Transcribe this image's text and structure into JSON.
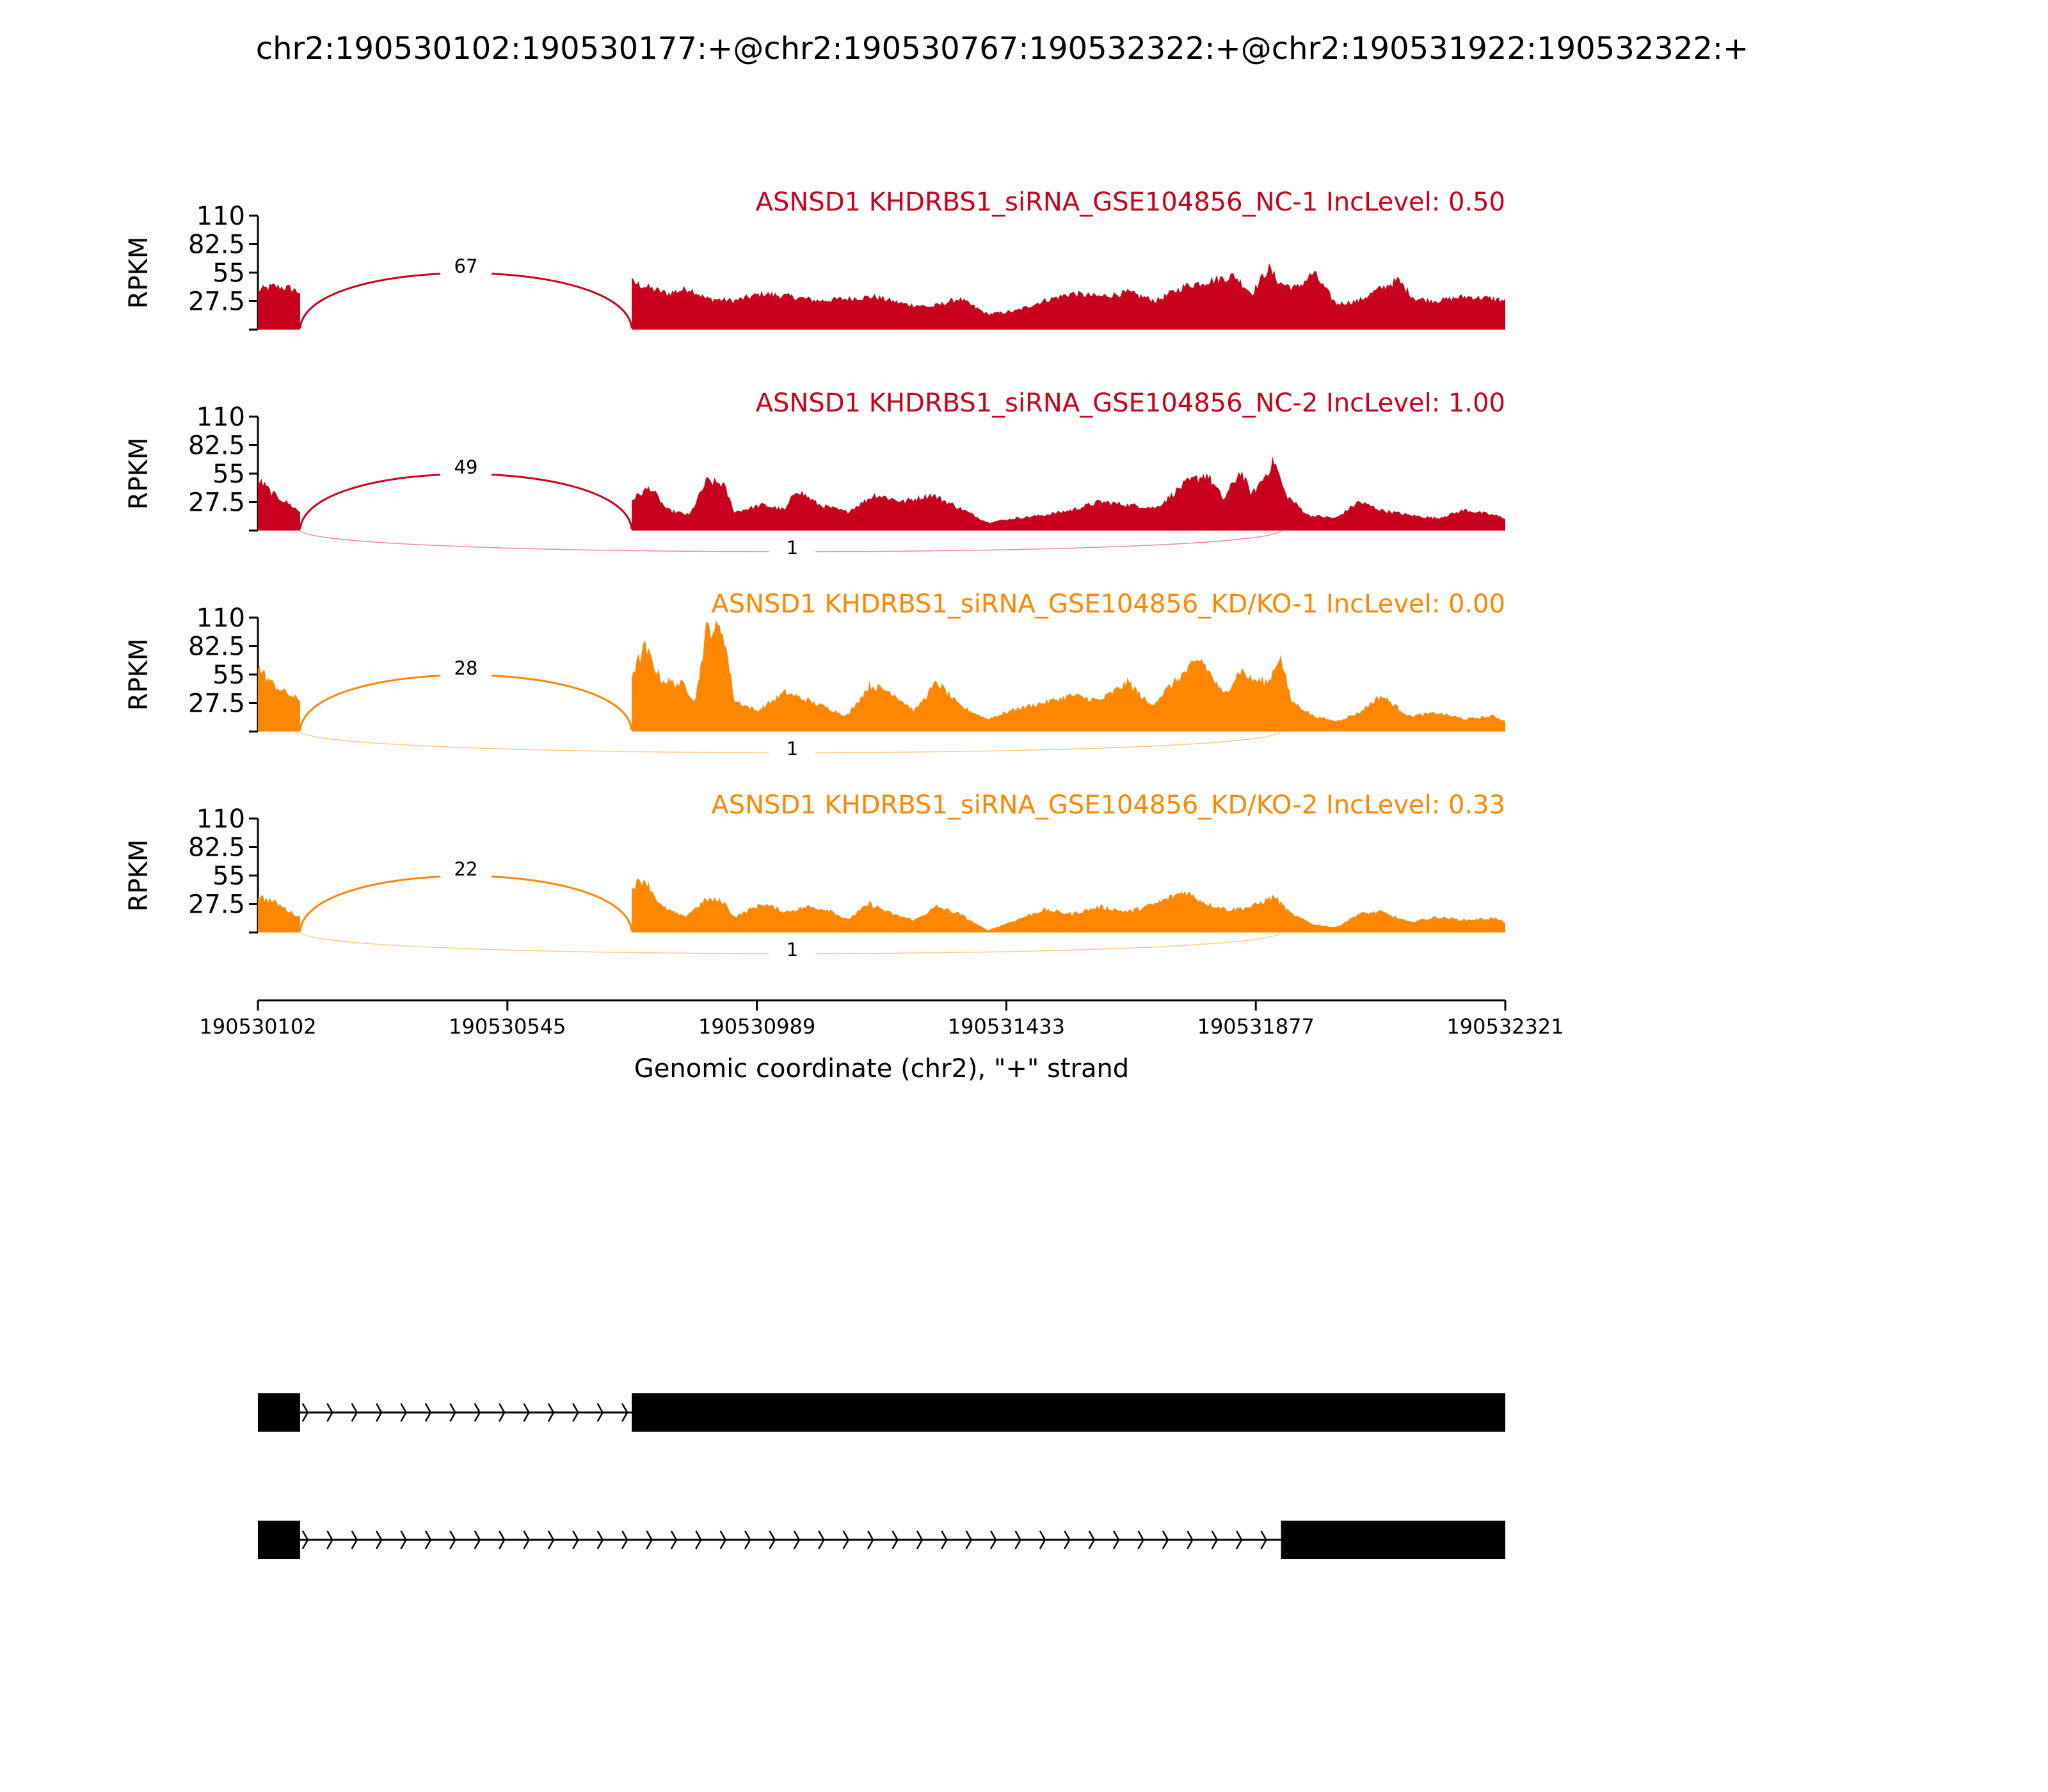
{
  "chart_data": {
    "type": "area",
    "title": "chr2:190530102:190530177:+@chr2:190530767:190532322:+@chr2:190531922:190532322:+",
    "ylabel": "RPKM",
    "yticks": [
      "110",
      "82.5",
      "55",
      "27.5"
    ],
    "ylim": [
      0,
      110
    ],
    "xlim": [
      190530102,
      190532321
    ],
    "xticks": [
      "190530102",
      "190530545",
      "190530989",
      "190531433",
      "190531877",
      "190532321"
    ],
    "xlabel": "Genomic coordinate (chr2), \"+\" strand",
    "exons": [
      [
        190530102,
        190530177
      ],
      [
        190530767,
        190531922
      ],
      [
        190531922,
        190532321
      ]
    ],
    "samples": [
      {
        "name": "ASNSD1 KHDRBS1_siRNA_GSE104856_NC-1 IncLevel: 0.50",
        "color": "#c9001b",
        "junctions": [
          {
            "from": 190530177,
            "to": 190530767,
            "count": "67",
            "side": "top"
          }
        ],
        "coverage_profile": [
          [
            190530102,
            38
          ],
          [
            190530130,
            42
          ],
          [
            190530160,
            40
          ],
          [
            190530177,
            36
          ],
          [
            190530767,
            46
          ],
          [
            190530790,
            42
          ],
          [
            190530830,
            35
          ],
          [
            190530870,
            40
          ],
          [
            190530900,
            30
          ],
          [
            190530950,
            28
          ],
          [
            190531000,
            35
          ],
          [
            190531050,
            32
          ],
          [
            190531100,
            28
          ],
          [
            190531150,
            30
          ],
          [
            190531200,
            32
          ],
          [
            190531250,
            25
          ],
          [
            190531300,
            22
          ],
          [
            190531350,
            30
          ],
          [
            190531400,
            15
          ],
          [
            190531450,
            18
          ],
          [
            190531500,
            28
          ],
          [
            190531550,
            35
          ],
          [
            190531600,
            32
          ],
          [
            190531650,
            36
          ],
          [
            190531700,
            28
          ],
          [
            190531750,
            42
          ],
          [
            190531800,
            48
          ],
          [
            190531840,
            52
          ],
          [
            190531870,
            35
          ],
          [
            190531900,
            60
          ],
          [
            190531920,
            45
          ],
          [
            190531950,
            40
          ],
          [
            190531980,
            55
          ],
          [
            190532020,
            25
          ],
          [
            190532060,
            28
          ],
          [
            190532100,
            40
          ],
          [
            190532130,
            48
          ],
          [
            190532160,
            30
          ],
          [
            190532200,
            28
          ],
          [
            190532250,
            32
          ],
          [
            190532300,
            30
          ],
          [
            190532321,
            28
          ]
        ]
      },
      {
        "name": "ASNSD1 KHDRBS1_siRNA_GSE104856_NC-2 IncLevel: 1.00",
        "color": "#c9001b",
        "junctions": [
          {
            "from": 190530177,
            "to": 190530767,
            "count": "49",
            "side": "top"
          },
          {
            "from": 190530177,
            "to": 190531922,
            "count": "1",
            "side": "bottom"
          }
        ],
        "coverage_profile": [
          [
            190530102,
            50
          ],
          [
            190530130,
            35
          ],
          [
            190530160,
            25
          ],
          [
            190530177,
            18
          ],
          [
            190530767,
            30
          ],
          [
            190530800,
            42
          ],
          [
            190530830,
            20
          ],
          [
            190530870,
            15
          ],
          [
            190530900,
            48
          ],
          [
            190530930,
            45
          ],
          [
            190530950,
            18
          ],
          [
            190531000,
            25
          ],
          [
            190531040,
            20
          ],
          [
            190531060,
            40
          ],
          [
            190531100,
            25
          ],
          [
            190531150,
            18
          ],
          [
            190531200,
            35
          ],
          [
            190531250,
            28
          ],
          [
            190531300,
            35
          ],
          [
            190531350,
            22
          ],
          [
            190531400,
            8
          ],
          [
            190531450,
            12
          ],
          [
            190531500,
            15
          ],
          [
            190531550,
            20
          ],
          [
            190531600,
            28
          ],
          [
            190531650,
            25
          ],
          [
            190531700,
            22
          ],
          [
            190531750,
            45
          ],
          [
            190531790,
            55
          ],
          [
            190531820,
            30
          ],
          [
            190531850,
            58
          ],
          [
            190531870,
            35
          ],
          [
            190531890,
            50
          ],
          [
            190531910,
            68
          ],
          [
            190531930,
            35
          ],
          [
            190531970,
            15
          ],
          [
            190532020,
            12
          ],
          [
            190532060,
            28
          ],
          [
            190532100,
            20
          ],
          [
            190532150,
            15
          ],
          [
            190532200,
            12
          ],
          [
            190532250,
            20
          ],
          [
            190532300,
            15
          ],
          [
            190532321,
            12
          ]
        ]
      },
      {
        "name": "ASNSD1 KHDRBS1_siRNA_GSE104856_KD/KO-1 IncLevel: 0.00",
        "color": "#ff8700",
        "junctions": [
          {
            "from": 190530177,
            "to": 190530767,
            "count": "28",
            "side": "top"
          },
          {
            "from": 190530177,
            "to": 190531922,
            "count": "1",
            "side": "bottom"
          }
        ],
        "coverage_profile": [
          [
            190530102,
            62
          ],
          [
            190530130,
            45
          ],
          [
            190530160,
            35
          ],
          [
            190530177,
            30
          ],
          [
            190530767,
            55
          ],
          [
            190530790,
            82
          ],
          [
            190530820,
            50
          ],
          [
            190530860,
            45
          ],
          [
            190530880,
            30
          ],
          [
            190530900,
            100
          ],
          [
            190530930,
            98
          ],
          [
            190530950,
            30
          ],
          [
            190530990,
            20
          ],
          [
            190531040,
            38
          ],
          [
            190531080,
            30
          ],
          [
            190531120,
            22
          ],
          [
            190531150,
            15
          ],
          [
            190531190,
            45
          ],
          [
            190531230,
            38
          ],
          [
            190531270,
            20
          ],
          [
            190531310,
            48
          ],
          [
            190531350,
            25
          ],
          [
            190531400,
            12
          ],
          [
            190531450,
            22
          ],
          [
            190531500,
            28
          ],
          [
            190531550,
            35
          ],
          [
            190531600,
            30
          ],
          [
            190531650,
            48
          ],
          [
            190531690,
            25
          ],
          [
            190531740,
            52
          ],
          [
            190531780,
            70
          ],
          [
            190531820,
            35
          ],
          [
            190531850,
            60
          ],
          [
            190531870,
            50
          ],
          [
            190531900,
            48
          ],
          [
            190531920,
            75
          ],
          [
            190531940,
            30
          ],
          [
            190531980,
            15
          ],
          [
            190532020,
            10
          ],
          [
            190532060,
            18
          ],
          [
            190532100,
            35
          ],
          [
            190532150,
            15
          ],
          [
            190532200,
            18
          ],
          [
            190532250,
            12
          ],
          [
            190532300,
            15
          ],
          [
            190532321,
            10
          ]
        ]
      },
      {
        "name": "ASNSD1 KHDRBS1_siRNA_GSE104856_KD/KO-2 IncLevel: 0.33",
        "color": "#ff8700",
        "junctions": [
          {
            "from": 190530177,
            "to": 190530767,
            "count": "22",
            "side": "top"
          },
          {
            "from": 190530177,
            "to": 190531922,
            "count": "1",
            "side": "bottom"
          }
        ],
        "coverage_profile": [
          [
            190530102,
            35
          ],
          [
            190530130,
            30
          ],
          [
            190530160,
            20
          ],
          [
            190530177,
            15
          ],
          [
            190530767,
            45
          ],
          [
            190530790,
            52
          ],
          [
            190530820,
            25
          ],
          [
            190530860,
            15
          ],
          [
            190530900,
            32
          ],
          [
            190530930,
            30
          ],
          [
            190530950,
            15
          ],
          [
            190531000,
            28
          ],
          [
            190531040,
            20
          ],
          [
            190531080,
            25
          ],
          [
            190531120,
            22
          ],
          [
            190531150,
            12
          ],
          [
            190531190,
            28
          ],
          [
            190531230,
            18
          ],
          [
            190531270,
            12
          ],
          [
            190531310,
            25
          ],
          [
            190531350,
            18
          ],
          [
            190531400,
            2
          ],
          [
            190531450,
            12
          ],
          [
            190531500,
            22
          ],
          [
            190531550,
            18
          ],
          [
            190531600,
            25
          ],
          [
            190531650,
            20
          ],
          [
            190531700,
            28
          ],
          [
            190531750,
            40
          ],
          [
            190531790,
            28
          ],
          [
            190531830,
            22
          ],
          [
            190531870,
            25
          ],
          [
            190531910,
            35
          ],
          [
            190531940,
            18
          ],
          [
            190531980,
            8
          ],
          [
            190532020,
            5
          ],
          [
            190532060,
            18
          ],
          [
            190532100,
            20
          ],
          [
            190532150,
            10
          ],
          [
            190532200,
            15
          ],
          [
            190532250,
            12
          ],
          [
            190532300,
            14
          ],
          [
            190532321,
            10
          ]
        ]
      }
    ],
    "gene_models": [
      {
        "exons": [
          [
            190530102,
            190530177
          ],
          [
            190530767,
            190532321
          ]
        ]
      },
      {
        "exons": [
          [
            190530102,
            190530177
          ],
          [
            190531922,
            190532321
          ]
        ]
      }
    ]
  }
}
